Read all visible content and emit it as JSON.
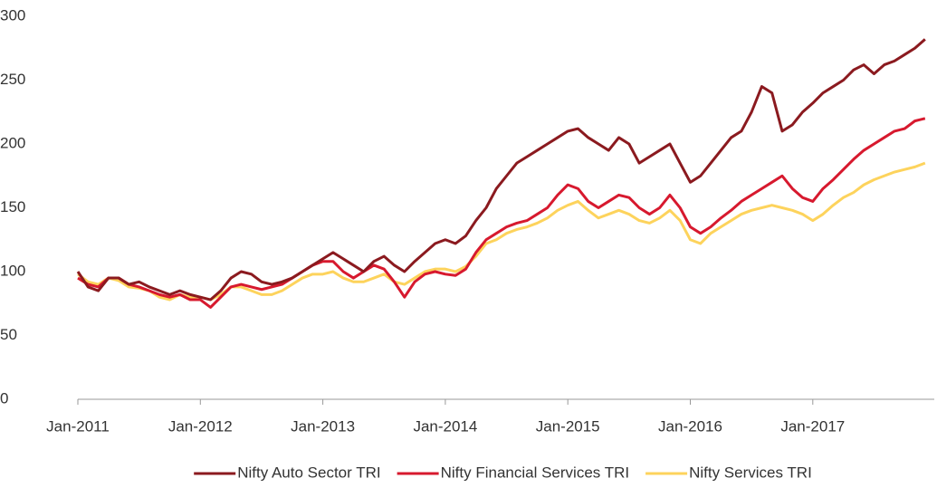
{
  "chart_data": {
    "type": "line",
    "categories": [
      "Jan-2011",
      null,
      null,
      null,
      null,
      null,
      null,
      null,
      null,
      null,
      null,
      null,
      "Jan-2012",
      null,
      null,
      null,
      null,
      null,
      null,
      null,
      null,
      null,
      null,
      null,
      "Jan-2013",
      null,
      null,
      null,
      null,
      null,
      null,
      null,
      null,
      null,
      null,
      null,
      "Jan-2014",
      null,
      null,
      null,
      null,
      null,
      null,
      null,
      null,
      null,
      null,
      null,
      "Jan-2015",
      null,
      null,
      null,
      null,
      null,
      null,
      null,
      null,
      null,
      null,
      null,
      "Jan-2016",
      null,
      null,
      null,
      null,
      null,
      null,
      null,
      null,
      null,
      null,
      null,
      "Jan-2017",
      null,
      null,
      null,
      null,
      null,
      null,
      null,
      null,
      null,
      null,
      null
    ],
    "series": [
      {
        "name": "Nifty Auto Sector TRI",
        "color": "#8b1a1f",
        "values": [
          100,
          88,
          85,
          95,
          95,
          90,
          92,
          88,
          85,
          82,
          85,
          82,
          80,
          78,
          85,
          95,
          100,
          98,
          92,
          90,
          92,
          95,
          100,
          105,
          110,
          115,
          110,
          105,
          100,
          108,
          112,
          105,
          100,
          108,
          115,
          122,
          125,
          122,
          128,
          140,
          150,
          165,
          175,
          185,
          190,
          195,
          200,
          205,
          210,
          212,
          205,
          200,
          195,
          205,
          200,
          185,
          190,
          195,
          200,
          185,
          170,
          175,
          185,
          195,
          205,
          210,
          225,
          245,
          240,
          210,
          215,
          225,
          232,
          240,
          245,
          250,
          258,
          262,
          255,
          262,
          265,
          270,
          275,
          282
        ]
      },
      {
        "name": "Nifty Financial Services TRI",
        "color": "#d7192e",
        "values": [
          95,
          90,
          88,
          95,
          95,
          90,
          88,
          85,
          82,
          80,
          82,
          78,
          78,
          72,
          80,
          88,
          90,
          88,
          86,
          88,
          90,
          95,
          100,
          105,
          108,
          108,
          100,
          95,
          100,
          105,
          102,
          92,
          80,
          92,
          98,
          100,
          98,
          97,
          102,
          115,
          125,
          130,
          135,
          138,
          140,
          145,
          150,
          160,
          168,
          165,
          155,
          150,
          155,
          160,
          158,
          150,
          145,
          150,
          160,
          150,
          135,
          130,
          135,
          142,
          148,
          155,
          160,
          165,
          170,
          175,
          165,
          158,
          155,
          165,
          172,
          180,
          188,
          195,
          200,
          205,
          210,
          212,
          218,
          220
        ]
      },
      {
        "name": "Nifty Services TRI",
        "color": "#fdd35c",
        "values": [
          98,
          92,
          90,
          95,
          93,
          88,
          87,
          85,
          80,
          78,
          82,
          80,
          80,
          78,
          82,
          88,
          88,
          85,
          82,
          82,
          85,
          90,
          95,
          98,
          98,
          100,
          95,
          92,
          92,
          95,
          98,
          92,
          90,
          95,
          100,
          102,
          102,
          100,
          104,
          112,
          122,
          125,
          130,
          133,
          135,
          138,
          142,
          148,
          152,
          155,
          148,
          142,
          145,
          148,
          145,
          140,
          138,
          142,
          148,
          140,
          125,
          122,
          130,
          135,
          140,
          145,
          148,
          150,
          152,
          150,
          148,
          145,
          140,
          145,
          152,
          158,
          162,
          168,
          172,
          175,
          178,
          180,
          182,
          185
        ]
      }
    ],
    "ylim": [
      0,
      300
    ],
    "yticks": [
      0,
      50,
      100,
      150,
      200,
      250,
      300
    ],
    "grid": false,
    "legend": "bottom"
  }
}
